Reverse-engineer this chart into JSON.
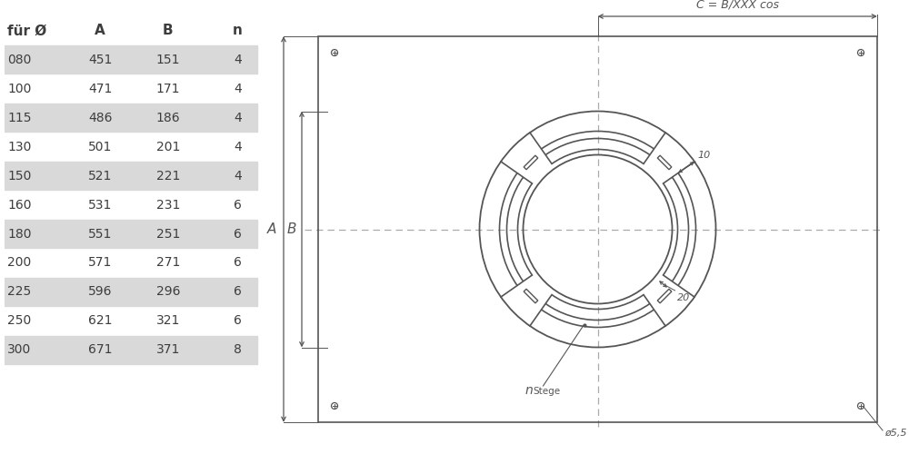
{
  "table_headers": [
    "für Ø",
    "A",
    "B",
    "n"
  ],
  "table_rows": [
    [
      "080",
      "451",
      "151",
      "4"
    ],
    [
      "100",
      "471",
      "171",
      "4"
    ],
    [
      "115",
      "486",
      "186",
      "4"
    ],
    [
      "130",
      "501",
      "201",
      "4"
    ],
    [
      "150",
      "521",
      "221",
      "4"
    ],
    [
      "160",
      "531",
      "231",
      "6"
    ],
    [
      "180",
      "551",
      "251",
      "6"
    ],
    [
      "200",
      "571",
      "271",
      "6"
    ],
    [
      "225",
      "596",
      "296",
      "6"
    ],
    [
      "250",
      "621",
      "321",
      "6"
    ],
    [
      "300",
      "671",
      "371",
      "8"
    ]
  ],
  "shaded_rows": [
    0,
    2,
    4,
    6,
    8,
    10
  ],
  "row_shade_color": "#d9d9d9",
  "bg_color": "#ffffff",
  "text_color": "#3d3d3d",
  "line_color": "#555555",
  "dash_color": "#aaaaaa",
  "label_C": "C = B/XXX cos",
  "label_phi": "ø5,5"
}
